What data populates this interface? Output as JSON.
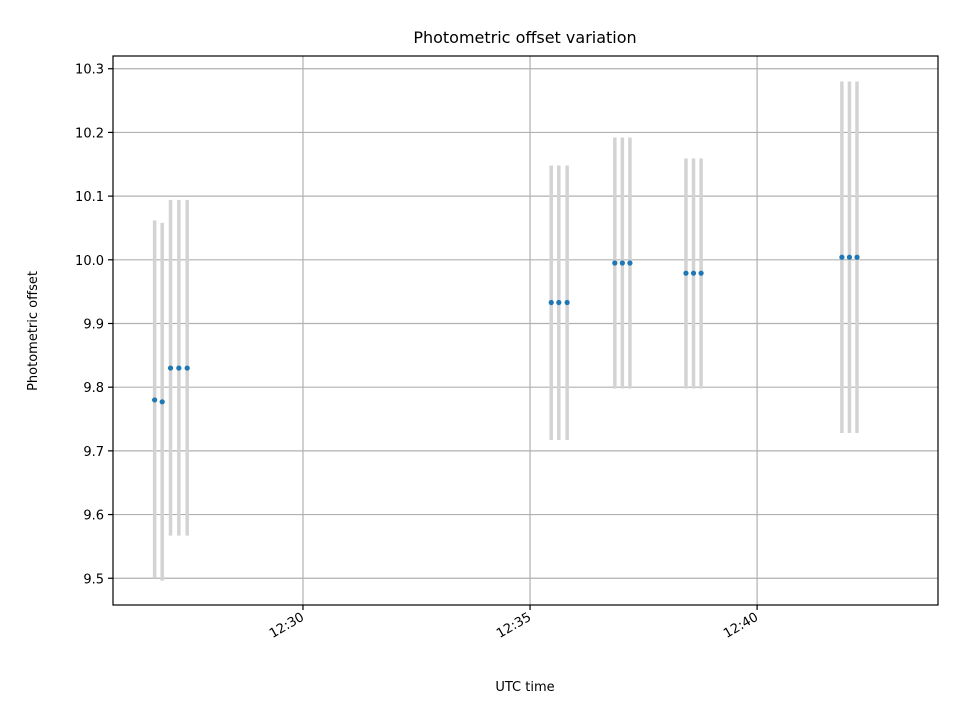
{
  "chart_data": {
    "type": "scatter",
    "title": "Photometric offset variation",
    "xlabel": "UTC time",
    "ylabel": "Photometric offset",
    "x_axis": {
      "type": "time",
      "range": [
        "12:25:49",
        "12:43:59"
      ],
      "ticks": [
        "12:30",
        "12:35",
        "12:40"
      ],
      "tick_rotation_deg": 30
    },
    "y_axis": {
      "range": [
        9.458,
        10.32
      ],
      "ticks": [
        "9.5",
        "9.6",
        "9.7",
        "9.8",
        "9.9",
        "10.0",
        "10.1",
        "10.2",
        "10.3"
      ]
    },
    "grid": true,
    "legend": null,
    "colors": {
      "points": "#1f77b4",
      "errorbars": "#d3d3d3",
      "grid": "#b0b0b0",
      "axes": "#000000"
    },
    "series": [
      {
        "marker": "point",
        "points": [
          {
            "x": "12:26:44",
            "y": 9.78,
            "ylow": 9.5,
            "yhigh": 10.062
          },
          {
            "x": "12:26:54",
            "y": 9.777,
            "ylow": 9.496,
            "yhigh": 10.058
          },
          {
            "x": "12:27:05",
            "y": 9.83,
            "ylow": 9.567,
            "yhigh": 10.094
          },
          {
            "x": "12:27:16",
            "y": 9.83,
            "ylow": 9.567,
            "yhigh": 10.094
          },
          {
            "x": "12:27:27",
            "y": 9.83,
            "ylow": 9.567,
            "yhigh": 10.094
          },
          {
            "x": "12:35:28",
            "y": 9.933,
            "ylow": 9.717,
            "yhigh": 10.148
          },
          {
            "x": "12:35:38",
            "y": 9.933,
            "ylow": 9.717,
            "yhigh": 10.148
          },
          {
            "x": "12:35:49",
            "y": 9.933,
            "ylow": 9.717,
            "yhigh": 10.148
          },
          {
            "x": "12:36:52",
            "y": 9.995,
            "ylow": 9.798,
            "yhigh": 10.192
          },
          {
            "x": "12:37:02",
            "y": 9.995,
            "ylow": 9.798,
            "yhigh": 10.192
          },
          {
            "x": "12:37:12",
            "y": 9.995,
            "ylow": 9.798,
            "yhigh": 10.192
          },
          {
            "x": "12:38:26",
            "y": 9.979,
            "ylow": 9.798,
            "yhigh": 10.159
          },
          {
            "x": "12:38:36",
            "y": 9.979,
            "ylow": 9.798,
            "yhigh": 10.159
          },
          {
            "x": "12:38:46",
            "y": 9.979,
            "ylow": 9.798,
            "yhigh": 10.159
          },
          {
            "x": "12:41:52",
            "y": 10.004,
            "ylow": 9.728,
            "yhigh": 10.28
          },
          {
            "x": "12:42:02",
            "y": 10.004,
            "ylow": 9.728,
            "yhigh": 10.28
          },
          {
            "x": "12:42:12",
            "y": 10.004,
            "ylow": 9.728,
            "yhigh": 10.28
          }
        ]
      }
    ]
  }
}
